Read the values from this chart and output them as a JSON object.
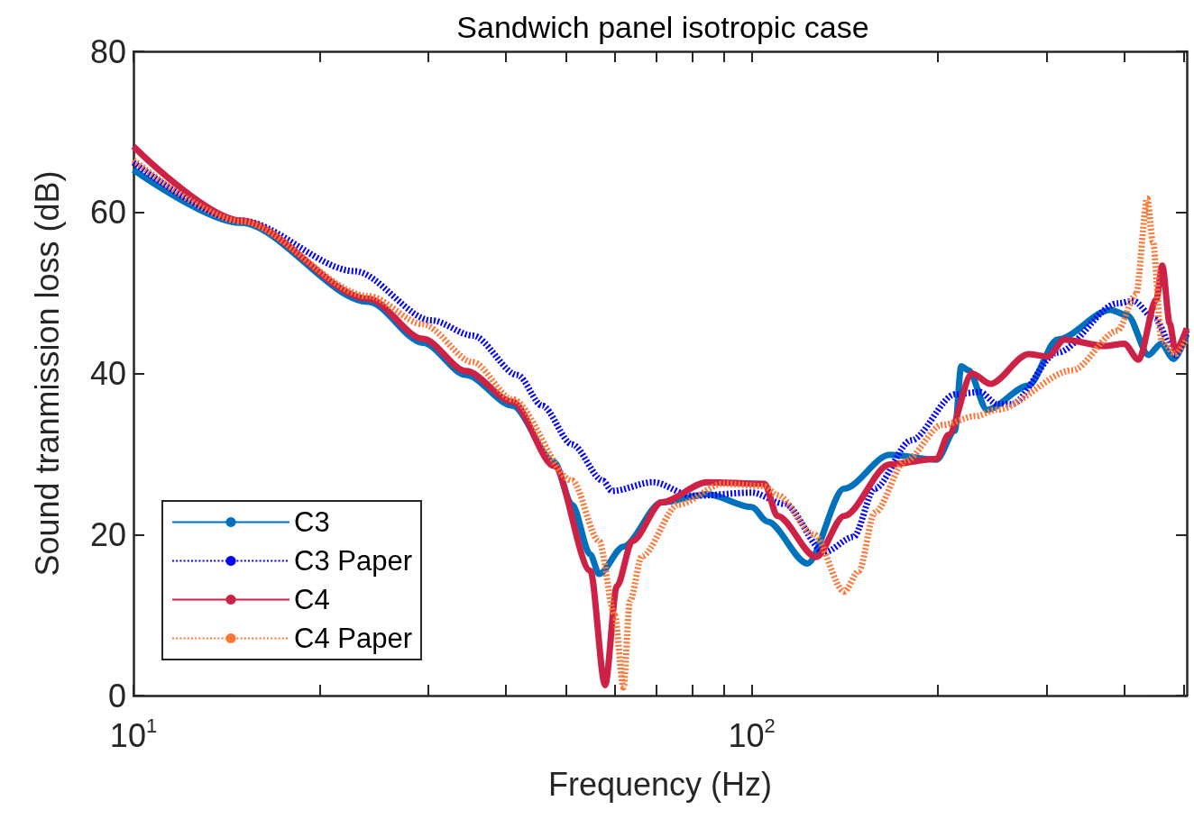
{
  "chart_data": {
    "type": "line",
    "title": "Sandwich panel isotropic case",
    "xlabel": "Frequency (Hz)",
    "ylabel": "Sound tranmission loss (dB)",
    "log": "x",
    "xlim": [
      10,
      505
    ],
    "ylim": [
      0,
      80
    ],
    "yticks": [
      0,
      20,
      40,
      60,
      80
    ],
    "xticks": [
      {
        "value": 10,
        "label": "10$^{1}$"
      },
      {
        "value": 20,
        "label": null
      },
      {
        "value": 30,
        "label": null
      },
      {
        "value": 40,
        "label": null
      },
      {
        "value": 50,
        "label": null
      },
      {
        "value": 60,
        "label": null
      },
      {
        "value": 70,
        "label": null
      },
      {
        "value": 80,
        "label": null
      },
      {
        "value": 90,
        "label": null
      },
      {
        "value": 100,
        "label": "10$^{2}$"
      },
      {
        "value": 200,
        "label": null
      },
      {
        "value": 300,
        "label": null
      },
      {
        "value": 400,
        "label": null
      },
      {
        "value": 500,
        "label": null
      }
    ],
    "legend": "bottom left",
    "grid": false,
    "marker": "none",
    "series": [
      {
        "name": "C3",
        "color": "#0072bd",
        "line_style": "solid",
        "x": [
          10,
          14.9,
          24,
          29.4,
          34.5,
          41,
          47.9,
          51.2,
          54.8,
          56.6,
          62,
          71.5,
          84.6,
          100,
          106,
          123,
          141,
          167,
          199,
          213,
          218,
          224,
          240,
          280,
          312,
          380,
          405,
          438,
          459,
          481,
          505
        ],
        "values": [
          65.3,
          58.7,
          48.9,
          43.8,
          39.8,
          36,
          29,
          23.7,
          17.5,
          15.1,
          18.5,
          24,
          25,
          23.4,
          21.6,
          16.4,
          25.7,
          29.9,
          29.3,
          32.9,
          40.9,
          40.4,
          35.5,
          38.5,
          44.2,
          47.9,
          47.2,
          42.3,
          43.7,
          41.8,
          44.9
        ]
      },
      {
        "name": "C3 Paper",
        "color": "#0000ff",
        "line_style": "dotted",
        "x": [
          10,
          14.9,
          22.8,
          30.3,
          35.4,
          41.8,
          45.8,
          51.2,
          57.4,
          59.4,
          69.2,
          80.1,
          100,
          113,
          131,
          146,
          158,
          181,
          213,
          234,
          249,
          263,
          312,
          390,
          414,
          448,
          485,
          505
        ],
        "values": [
          66.2,
          59,
          52.7,
          46.6,
          44.7,
          39.8,
          36,
          31.2,
          26.7,
          25.4,
          26.5,
          24.8,
          25.2,
          23.8,
          17.8,
          19.7,
          25.7,
          31.7,
          37.4,
          37.7,
          36.2,
          36.2,
          42.6,
          48.7,
          49,
          46.8,
          42.3,
          45.3
        ]
      },
      {
        "name": "C4",
        "color": "#cd2146",
        "line_style": "solid",
        "x": [
          10,
          14.9,
          24,
          29.4,
          34.5,
          41,
          47.9,
          54.8,
          57.9,
          60.5,
          64.1,
          71.5,
          84.6,
          104.8,
          110,
          127,
          141,
          167,
          199,
          208,
          227,
          243,
          280,
          301,
          320,
          372,
          400,
          422,
          451,
          461,
          474,
          484,
          505
        ],
        "values": [
          68.2,
          59,
          49.3,
          44.3,
          40.3,
          36.5,
          28.5,
          15.5,
          1.3,
          13.6,
          19.2,
          24,
          26.5,
          26.3,
          22.3,
          17.2,
          22.3,
          28.7,
          29.4,
          32.4,
          40,
          38.7,
          42.4,
          42.1,
          44.2,
          43.4,
          43.7,
          41.7,
          49.2,
          53.4,
          46.2,
          42.8,
          45.6
        ]
      },
      {
        "name": "C4 Paper",
        "color": "#ff7534",
        "line_style": "dotted",
        "x": [
          10,
          14.9,
          24,
          29.4,
          35.4,
          41,
          51.2,
          56.6,
          60,
          62,
          63.5,
          66.4,
          76,
          89.8,
          104.8,
          110,
          126,
          141,
          149,
          158,
          177,
          203,
          230,
          249,
          330,
          390,
          418,
          436,
          445,
          460,
          484,
          505
        ],
        "values": [
          66.5,
          58.9,
          49.6,
          46.1,
          41.4,
          36.8,
          26.7,
          19.2,
          10,
          1,
          11.7,
          17.3,
          23.7,
          26.3,
          26,
          24.9,
          20,
          12.9,
          15.5,
          22.7,
          29.1,
          33.6,
          34.7,
          35.5,
          40.4,
          45.3,
          49.8,
          61.7,
          56.4,
          44,
          42.4,
          44.3
        ]
      }
    ]
  }
}
